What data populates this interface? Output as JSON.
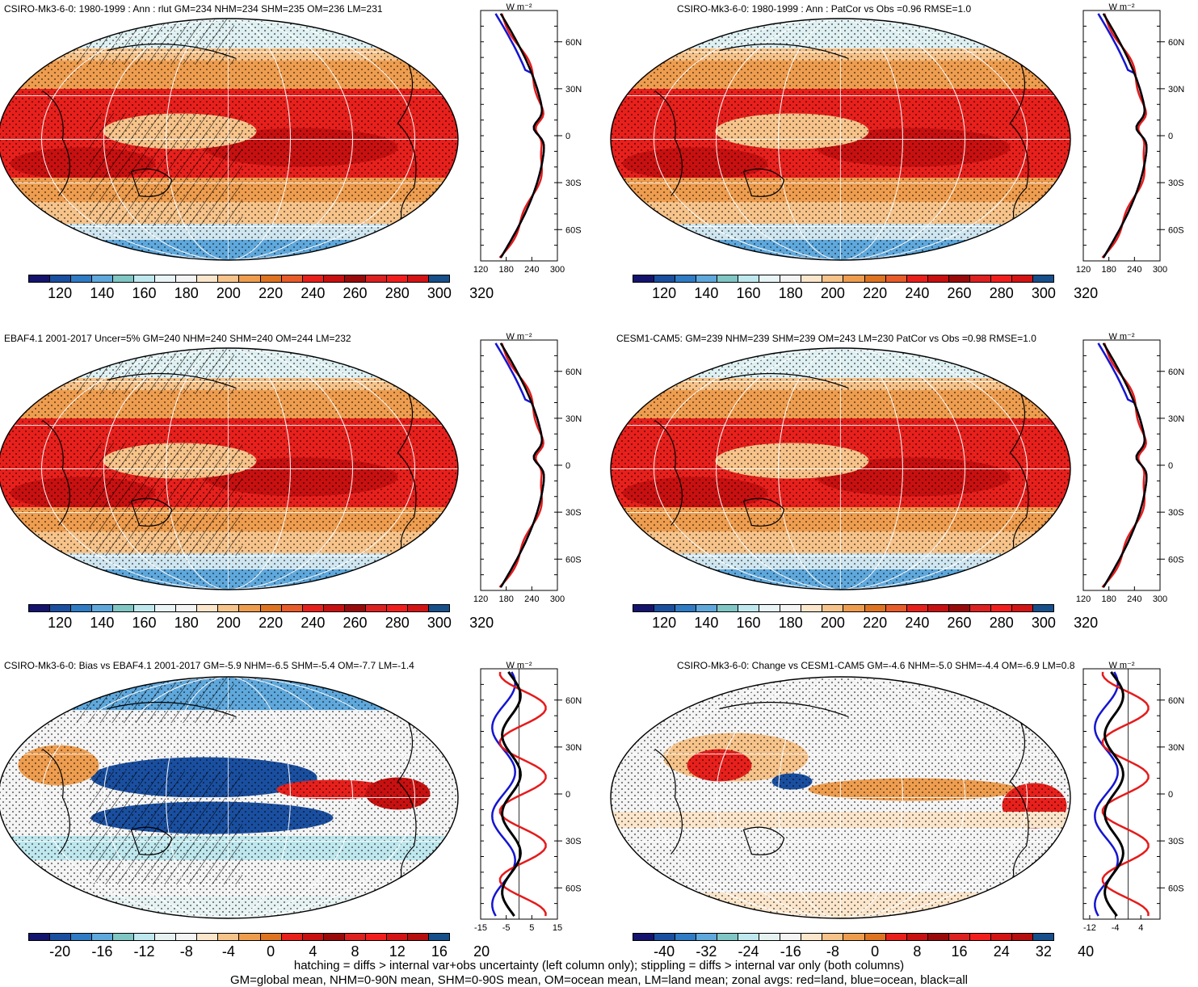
{
  "panels": [
    {
      "title": "CSIRO-Mk3-6-0: 1980-1999 : Ann : rlut GM=234 NHM=234 SHM=235 OM=236 LM=231",
      "kind": "abs",
      "colorbar": [
        "120",
        "140",
        "160",
        "180",
        "200",
        "220",
        "240",
        "260",
        "280",
        "300",
        "320"
      ],
      "zonal_units": "W m⁻²",
      "zonal_ticks": [
        "120",
        "180",
        "240",
        "300"
      ],
      "zonal_range": [
        120,
        300
      ]
    },
    {
      "title": "CSIRO-Mk3-6-0: 1980-1999 : Ann : PatCor vs Obs =0.96 RMSE=1.0",
      "kind": "abs",
      "colorbar": [
        "120",
        "140",
        "160",
        "180",
        "200",
        "220",
        "240",
        "260",
        "280",
        "300",
        "320"
      ],
      "zonal_units": "W m⁻²",
      "zonal_ticks": [
        "120",
        "180",
        "240",
        "300"
      ],
      "zonal_range": [
        120,
        300
      ]
    },
    {
      "title": "EBAF4.1 2001-2017 Uncer=5% GM=240 NHM=240 SHM=240 OM=244 LM=232",
      "kind": "abs",
      "colorbar": [
        "120",
        "140",
        "160",
        "180",
        "200",
        "220",
        "240",
        "260",
        "280",
        "300",
        "320"
      ],
      "zonal_units": "W m⁻²",
      "zonal_ticks": [
        "120",
        "180",
        "240",
        "300"
      ],
      "zonal_range": [
        120,
        300
      ]
    },
    {
      "title": "CESM1-CAM5: GM=239 NHM=239 SHM=239 OM=243 LM=230 PatCor vs Obs =0.98 RMSE=1.0",
      "kind": "abs",
      "colorbar": [
        "120",
        "140",
        "160",
        "180",
        "200",
        "220",
        "240",
        "260",
        "280",
        "300",
        "320"
      ],
      "zonal_units": "W m⁻²",
      "zonal_ticks": [
        "120",
        "180",
        "240",
        "300"
      ],
      "zonal_range": [
        120,
        300
      ]
    },
    {
      "title": "CSIRO-Mk3-6-0: Bias vs EBAF4.1 2001-2017 GM=-5.9 NHM=-6.5 SHM=-5.4 OM=-7.7 LM=-1.4",
      "kind": "diff",
      "colorbar": [
        "-20",
        "-16",
        "-12",
        "-8",
        "-4",
        "0",
        "4",
        "8",
        "12",
        "16",
        "20"
      ],
      "zonal_units": "W m⁻²",
      "zonal_ticks": [
        "-15",
        "-5",
        "5",
        "15"
      ],
      "zonal_range": [
        -15,
        15
      ]
    },
    {
      "title": "CSIRO-Mk3-6-0: Change vs CESM1-CAM5 GM=-4.6 NHM=-5.0 SHM=-4.4 OM=-6.9 LM=0.8",
      "kind": "diff",
      "colorbar": [
        "-40",
        "-32",
        "-24",
        "-16",
        "-8",
        "0",
        "8",
        "16",
        "24",
        "32",
        "40"
      ],
      "zonal_units": "W m⁻²",
      "zonal_ticks": [
        "-12",
        "-4",
        "4"
      ],
      "zonal_range": [
        -14,
        10
      ]
    }
  ],
  "lat_labels": [
    "60N",
    "30N",
    "0",
    "30S",
    "60S"
  ],
  "colors": {
    "abs": [
      "#14146e",
      "#1a4fa0",
      "#2f7bc4",
      "#5fa8dc",
      "#7fc6c4",
      "#bfe8ee",
      "#e8f4f6",
      "#f4f4f4",
      "#fbe6cc",
      "#f6c38a",
      "#ee9d4f",
      "#de7322",
      "#e85c2a",
      "#e8201c",
      "#c81010",
      "#9a0a0a",
      "#dd2020",
      "#f21e1e",
      "#d41414",
      "#174f8a"
    ],
    "diff": [
      "#14146e",
      "#1a4fa0",
      "#2f7bc4",
      "#5fa8dc",
      "#7fc6c4",
      "#bfe8ee",
      "#e6f2f2",
      "#f4f4f4",
      "#fbe6cc",
      "#f6c38a",
      "#ee9d4f",
      "#de7322",
      "#e8201c",
      "#c81010",
      "#9a0a0a",
      "#dd2020",
      "#f21e1e",
      "#d41414",
      "#b50f0f",
      "#174f8a"
    ],
    "land": "#e51b1b",
    "ocean": "#1515d0",
    "all": "#000000"
  },
  "footer": [
    "hatching = diffs > internal var+obs uncertainty (left column only); stippling = diffs > internal var only (both columns)",
    "GM=global mean, NHM=0-90N mean, SHM=0-90S mean, OM=ocean mean, LM=land mean; zonal avgs: red=land, blue=ocean, black=all"
  ]
}
